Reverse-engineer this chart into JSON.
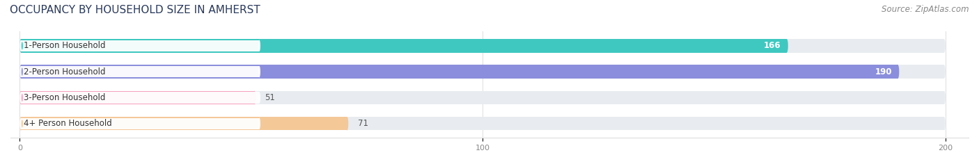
{
  "title": "OCCUPANCY BY HOUSEHOLD SIZE IN AMHERST",
  "source": "Source: ZipAtlas.com",
  "categories": [
    "1-Person Household",
    "2-Person Household",
    "3-Person Household",
    "4+ Person Household"
  ],
  "values": [
    166,
    190,
    51,
    71
  ],
  "bar_colors": [
    "#3ec8c0",
    "#8b8edc",
    "#f5a0bc",
    "#f5c898"
  ],
  "xlim": [
    -2,
    205
  ],
  "x_max_bg": 200,
  "xticks": [
    0,
    100,
    200
  ],
  "figsize": [
    14.06,
    2.33
  ],
  "dpi": 100,
  "background_color": "#ffffff",
  "bar_bg_color": "#e8ecf0",
  "title_fontsize": 11,
  "source_fontsize": 8.5,
  "bar_height": 0.52,
  "label_fontsize": 8.5,
  "value_fontsize": 8.5,
  "title_color": "#2a3a5c",
  "source_color": "#888888",
  "tick_color": "#888888"
}
